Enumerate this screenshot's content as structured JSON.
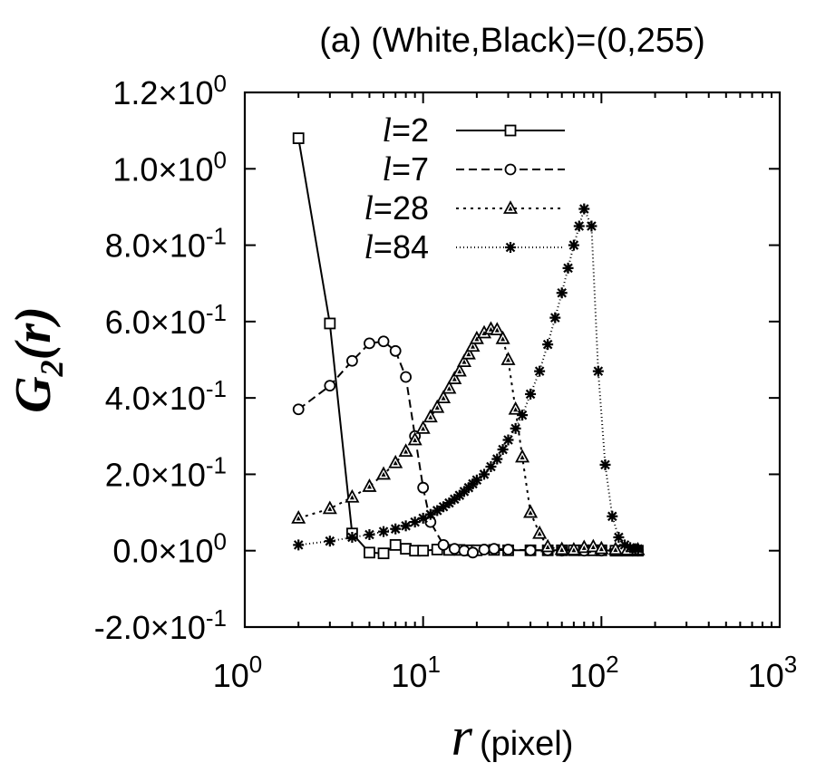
{
  "chart_data": {
    "type": "line",
    "title": "(a) (White,Black)=(0,255)",
    "xlabel": "r (pixel)",
    "xlabel_var": "r",
    "xlabel_unit": "(pixel)",
    "ylabel": "G2(r)",
    "xscale": "log",
    "xlim": [
      1,
      1000
    ],
    "ylim": [
      -0.2,
      1.2
    ],
    "grid": false,
    "legend_position": "top-right",
    "x_ticks": [
      {
        "value": 1,
        "base": "10",
        "exp": "0"
      },
      {
        "value": 10,
        "base": "10",
        "exp": "1"
      },
      {
        "value": 100,
        "base": "10",
        "exp": "2"
      },
      {
        "value": 1000,
        "base": "10",
        "exp": "3"
      }
    ],
    "y_ticks": [
      {
        "value": 1.2,
        "mant": "1.2",
        "exp": "0"
      },
      {
        "value": 1.0,
        "mant": "1.0",
        "exp": "0"
      },
      {
        "value": 0.8,
        "mant": "8.0",
        "exp": "-1"
      },
      {
        "value": 0.6,
        "mant": "6.0",
        "exp": "-1"
      },
      {
        "value": 0.4,
        "mant": "4.0",
        "exp": "-1"
      },
      {
        "value": 0.2,
        "mant": "2.0",
        "exp": "-1"
      },
      {
        "value": 0.0,
        "mant": "0.0",
        "exp": "0"
      },
      {
        "value": -0.2,
        "mant": "-2.0",
        "exp": "-1"
      }
    ],
    "series": [
      {
        "name": "l=2",
        "name_var": "l",
        "name_value": "=2",
        "marker": "square",
        "dash": "",
        "x": [
          2,
          3,
          4,
          5,
          6,
          7,
          8,
          9,
          10,
          12,
          14,
          16,
          18,
          20,
          25,
          30,
          40,
          50,
          60,
          70,
          80,
          90,
          100,
          120,
          140,
          160
        ],
        "y": [
          1.08,
          0.595,
          0.045,
          -0.005,
          -0.007,
          0.015,
          0.005,
          0.0,
          0.0,
          0.003,
          0.002,
          0.002,
          0.001,
          0.001,
          0.002,
          0.001,
          0.001,
          0.001,
          0.001,
          0.001,
          0.001,
          0.001,
          0.001,
          0.0,
          0.0,
          0.0
        ]
      },
      {
        "name": "l=7",
        "name_var": "l",
        "name_value": "=7",
        "marker": "circle",
        "dash": "9,5",
        "x": [
          2,
          3,
          4,
          5,
          6,
          7,
          8,
          9,
          10,
          11,
          13,
          15,
          17,
          19,
          22,
          25,
          30,
          40,
          50,
          60,
          80,
          100,
          130,
          160
        ],
        "y": [
          0.37,
          0.432,
          0.497,
          0.543,
          0.548,
          0.523,
          0.455,
          0.3,
          0.165,
          0.075,
          0.015,
          0.005,
          0.0,
          -0.005,
          0.003,
          0.005,
          0.003,
          0.001,
          0.001,
          0.0,
          0.0,
          0.0,
          0.0,
          0.0
        ]
      },
      {
        "name": "l=28",
        "name_var": "l",
        "name_value": "=28",
        "marker": "triangle",
        "dash": "3,5",
        "x": [
          2,
          3,
          4,
          5,
          6,
          7,
          8,
          9,
          10,
          11,
          12,
          13,
          14,
          15,
          16,
          17,
          18,
          19,
          20,
          22,
          24,
          26,
          28,
          30,
          33,
          36,
          40,
          45,
          50,
          60,
          70,
          80,
          90,
          100,
          120,
          140,
          160
        ],
        "y": [
          0.085,
          0.11,
          0.14,
          0.168,
          0.2,
          0.23,
          0.26,
          0.29,
          0.32,
          0.35,
          0.375,
          0.4,
          0.425,
          0.45,
          0.47,
          0.495,
          0.515,
          0.535,
          0.555,
          0.57,
          0.58,
          0.578,
          0.555,
          0.5,
          0.37,
          0.245,
          0.1,
          0.045,
          0.01,
          0.003,
          0.002,
          0.008,
          0.01,
          0.005,
          0.003,
          0.002,
          0.002
        ]
      },
      {
        "name": "l=84",
        "name_var": "l",
        "name_value": "=84",
        "marker": "star",
        "dash": "1,3",
        "x": [
          2,
          3,
          4,
          5,
          6,
          7,
          8,
          9,
          10,
          11,
          12,
          13,
          14,
          15,
          16,
          17,
          18,
          19,
          20,
          22,
          24,
          26,
          28,
          30,
          33,
          36,
          40,
          45,
          50,
          55,
          60,
          65,
          70,
          75,
          80,
          88,
          96,
          105,
          115,
          125,
          135,
          145,
          155,
          160
        ],
        "y": [
          0.015,
          0.025,
          0.035,
          0.042,
          0.05,
          0.057,
          0.065,
          0.075,
          0.085,
          0.095,
          0.105,
          0.115,
          0.125,
          0.135,
          0.145,
          0.155,
          0.165,
          0.175,
          0.185,
          0.2,
          0.22,
          0.24,
          0.265,
          0.29,
          0.32,
          0.355,
          0.41,
          0.47,
          0.54,
          0.61,
          0.675,
          0.74,
          0.8,
          0.85,
          0.895,
          0.85,
          0.47,
          0.225,
          0.09,
          0.035,
          0.015,
          0.008,
          0.005,
          0.005
        ]
      }
    ]
  }
}
